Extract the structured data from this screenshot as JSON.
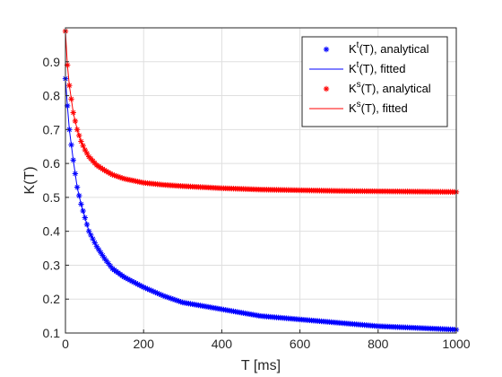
{
  "chart_data": {
    "type": "line",
    "xlabel": "T [ms]",
    "ylabel": "K(T)",
    "xlim": [
      0,
      1000
    ],
    "ylim": [
      0.1,
      1.0
    ],
    "xticks": [
      0,
      200,
      400,
      600,
      800,
      1000
    ],
    "yticks": [
      0.1,
      0.2,
      0.3,
      0.4,
      0.5,
      0.6,
      0.7,
      0.8,
      0.9
    ],
    "grid": true,
    "legend_position": "top-right",
    "series": [
      {
        "name_main": "K",
        "name_sup": "t",
        "name_rest": "(T), analytical",
        "style": "markers",
        "marker": "asterisk",
        "color": "#0000ff",
        "x": [
          0,
          5,
          10,
          20,
          30,
          40,
          50,
          60,
          80,
          100,
          120,
          150,
          200,
          250,
          300,
          400,
          500,
          600,
          700,
          800,
          900,
          1000
        ],
        "y": [
          0.85,
          0.77,
          0.7,
          0.61,
          0.53,
          0.48,
          0.44,
          0.4,
          0.355,
          0.32,
          0.29,
          0.265,
          0.235,
          0.21,
          0.19,
          0.17,
          0.15,
          0.14,
          0.13,
          0.12,
          0.115,
          0.11
        ]
      },
      {
        "name_main": "K",
        "name_sup": "t",
        "name_rest": "(T), fitted",
        "style": "line",
        "color": "#0000ff",
        "x": [
          0,
          5,
          10,
          20,
          30,
          40,
          50,
          60,
          80,
          100,
          120,
          150,
          200,
          250,
          300,
          400,
          500,
          600,
          700,
          800,
          900,
          1000
        ],
        "y": [
          0.85,
          0.77,
          0.7,
          0.61,
          0.53,
          0.48,
          0.44,
          0.4,
          0.355,
          0.32,
          0.29,
          0.265,
          0.235,
          0.21,
          0.19,
          0.17,
          0.15,
          0.14,
          0.13,
          0.12,
          0.115,
          0.11
        ]
      },
      {
        "name_main": "K",
        "name_sup": "s",
        "name_rest": "(T), analytical",
        "style": "markers",
        "marker": "asterisk",
        "color": "#ff0000",
        "x": [
          0,
          5,
          10,
          20,
          30,
          40,
          50,
          60,
          80,
          100,
          120,
          150,
          200,
          250,
          300,
          400,
          500,
          600,
          700,
          800,
          900,
          1000
        ],
        "y": [
          0.99,
          0.89,
          0.83,
          0.75,
          0.7,
          0.665,
          0.64,
          0.62,
          0.595,
          0.58,
          0.567,
          0.555,
          0.543,
          0.537,
          0.533,
          0.527,
          0.523,
          0.521,
          0.519,
          0.518,
          0.517,
          0.516
        ]
      },
      {
        "name_main": "K",
        "name_sup": "s",
        "name_rest": "(T), fitted",
        "style": "line",
        "color": "#ff0000",
        "x": [
          0,
          5,
          10,
          20,
          30,
          40,
          50,
          60,
          80,
          100,
          120,
          150,
          200,
          250,
          300,
          400,
          500,
          600,
          700,
          800,
          900,
          1000
        ],
        "y": [
          0.99,
          0.89,
          0.83,
          0.75,
          0.7,
          0.665,
          0.64,
          0.62,
          0.595,
          0.58,
          0.567,
          0.555,
          0.543,
          0.537,
          0.533,
          0.527,
          0.523,
          0.521,
          0.519,
          0.518,
          0.517,
          0.516
        ]
      }
    ]
  }
}
